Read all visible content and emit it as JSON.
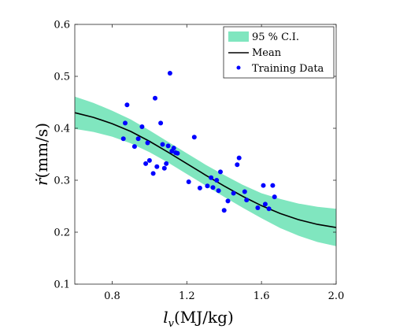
{
  "chart_data": {
    "type": "line",
    "title": "",
    "xlabel_main": "l",
    "xlabel_sub": "v",
    "xlabel_unit": "(MJ/kg)",
    "ylabel_main": "ṙ",
    "ylabel_unit": "(mm/s)",
    "xlim": [
      0.6,
      2.0
    ],
    "ylim": [
      0.1,
      0.6
    ],
    "xticks": [
      0.8,
      1.2,
      1.6,
      2.0
    ],
    "xtick_labels": [
      "0.8",
      "1.2",
      "1.6",
      "2.0"
    ],
    "yticks": [
      0.1,
      0.2,
      0.3,
      0.4,
      0.5,
      0.6
    ],
    "ytick_labels": [
      "0.1",
      "0.2",
      "0.3",
      "0.4",
      "0.5",
      "0.6"
    ],
    "grid": false,
    "legend_position": "top-right",
    "legend": {
      "ci_label": "95 % C.I.",
      "mean_label": "Mean",
      "data_label": "Training Data"
    },
    "colors": {
      "ci_band": "#80e6bf",
      "mean_line": "#000000",
      "points": "#0000ff"
    },
    "mean": {
      "x": [
        0.6,
        0.7,
        0.8,
        0.9,
        1.0,
        1.1,
        1.2,
        1.3,
        1.4,
        1.5,
        1.6,
        1.7,
        1.8,
        1.9,
        2.0
      ],
      "y": [
        0.43,
        0.421,
        0.409,
        0.394,
        0.375,
        0.354,
        0.332,
        0.31,
        0.289,
        0.269,
        0.251,
        0.236,
        0.224,
        0.215,
        0.209
      ]
    },
    "ci_band": {
      "x": [
        0.6,
        0.7,
        0.8,
        0.9,
        1.0,
        1.1,
        1.2,
        1.3,
        1.4,
        1.5,
        1.6,
        1.7,
        1.8,
        1.9,
        2.0
      ],
      "lower": [
        0.399,
        0.393,
        0.384,
        0.371,
        0.354,
        0.334,
        0.312,
        0.29,
        0.268,
        0.247,
        0.227,
        0.208,
        0.193,
        0.181,
        0.173
      ],
      "upper": [
        0.461,
        0.449,
        0.434,
        0.417,
        0.396,
        0.374,
        0.352,
        0.33,
        0.31,
        0.291,
        0.275,
        0.264,
        0.255,
        0.249,
        0.245
      ]
    },
    "training_data": {
      "x": [
        0.86,
        0.87,
        0.88,
        0.92,
        0.94,
        0.96,
        0.98,
        0.99,
        1.0,
        1.02,
        1.03,
        1.04,
        1.06,
        1.07,
        1.08,
        1.09,
        1.1,
        1.11,
        1.12,
        1.13,
        1.14,
        1.15,
        1.21,
        1.24,
        1.27,
        1.31,
        1.33,
        1.34,
        1.36,
        1.37,
        1.38,
        1.4,
        1.42,
        1.45,
        1.47,
        1.48,
        1.51,
        1.52,
        1.58,
        1.61,
        1.62,
        1.64,
        1.66,
        1.67
      ],
      "y": [
        0.38,
        0.41,
        0.445,
        0.365,
        0.38,
        0.403,
        0.332,
        0.372,
        0.338,
        0.313,
        0.458,
        0.326,
        0.41,
        0.369,
        0.323,
        0.332,
        0.366,
        0.506,
        0.356,
        0.362,
        0.353,
        0.352,
        0.297,
        0.383,
        0.285,
        0.289,
        0.305,
        0.286,
        0.3,
        0.28,
        0.316,
        0.242,
        0.26,
        0.275,
        0.33,
        0.343,
        0.278,
        0.262,
        0.247,
        0.29,
        0.254,
        0.245,
        0.29,
        0.268
      ]
    }
  }
}
